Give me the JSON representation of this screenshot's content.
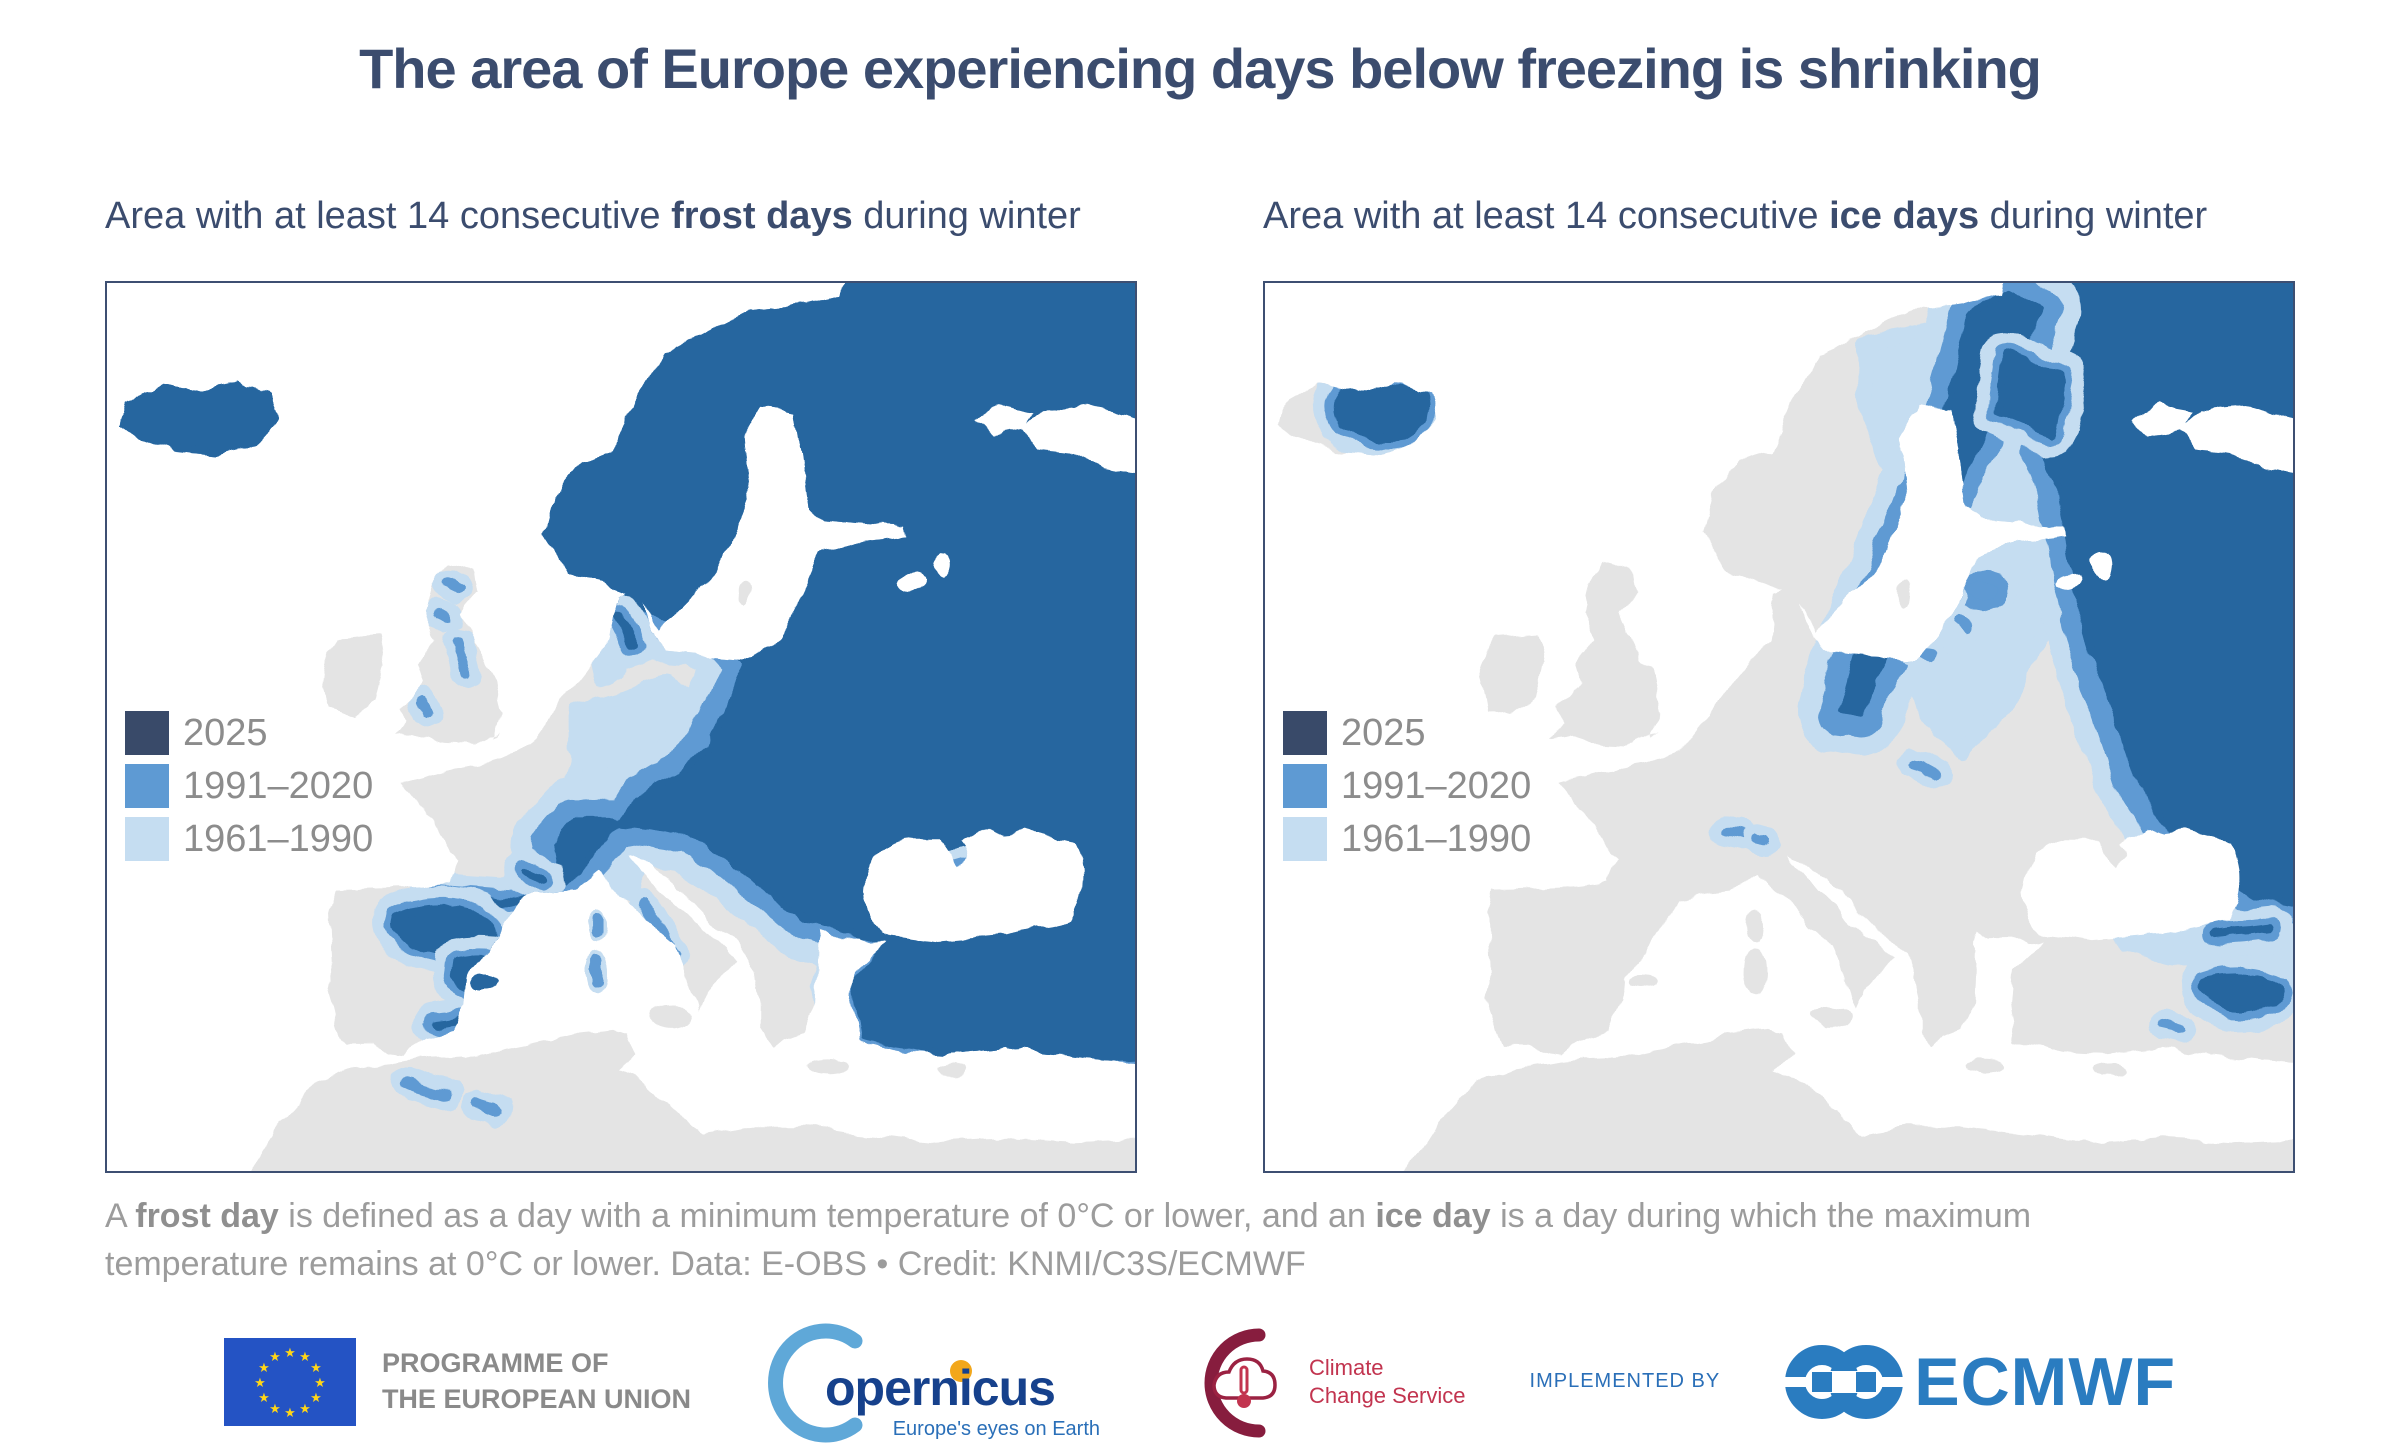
{
  "title": "The area of Europe experiencing days below freezing is shrinking",
  "panels": [
    {
      "subtitle_prefix": "Area with at least 14 consecutive ",
      "subtitle_bold": "frost days",
      "subtitle_suffix": " during winter",
      "legend": [
        {
          "label": "2025"
        },
        {
          "label": "1991–2020"
        },
        {
          "label": "1961–1990"
        }
      ]
    },
    {
      "subtitle_prefix": "Area with at least 14 consecutive ",
      "subtitle_bold": "ice days",
      "subtitle_suffix": " during winter",
      "legend": [
        {
          "label": "2025"
        },
        {
          "label": "1991–2020"
        },
        {
          "label": "1961–1990"
        }
      ]
    }
  ],
  "legend_colors": {
    "y2025": "#394a69",
    "y1991": "#5e9ad3",
    "y1961": "#c5ddf1"
  },
  "map_colors": {
    "deep": "#26669f",
    "medium": "#5e9ad3",
    "light": "#c5ddf1",
    "land": "#e4e4e4",
    "sea": "#ffffff",
    "border": "#3d4f72"
  },
  "caption": {
    "p1": "A ",
    "b1": "frost day",
    "p2": " is defined as a day with a minimum temperature of 0°C or lower, and an ",
    "b2": "ice day",
    "p3": " is a day during which the maximum temperature remains at 0°C or lower. Data: E-OBS • Credit: KNMI/C3S/ECMWF"
  },
  "footer": {
    "eu_line1": "PROGRAMME OF",
    "eu_line2": "THE EUROPEAN UNION",
    "copernicus_rest": "opernicus",
    "copernicus_tagline": "Europe's eyes on Earth",
    "ccs_line1": "Climate",
    "ccs_line2": "Change Service",
    "implemented_by": "IMPLEMENTED BY",
    "ecmwf": "ECMWF"
  }
}
